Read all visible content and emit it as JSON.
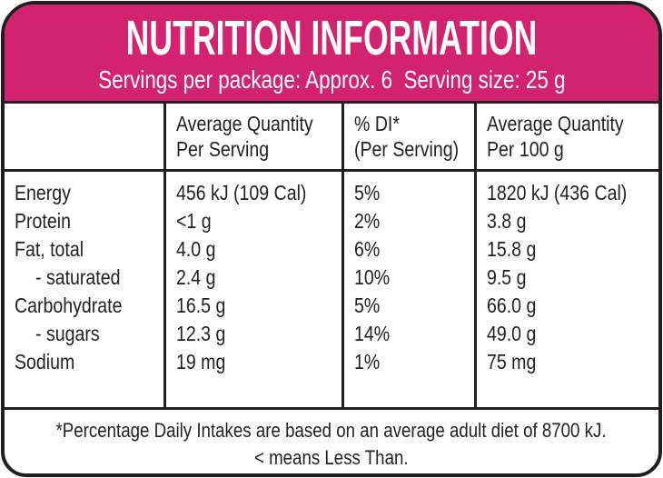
{
  "header": {
    "title": "NUTRITION INFORMATION",
    "servings_line": "Servings per package: Approx. 6  Serving size: 25 g"
  },
  "table": {
    "columns": [
      {
        "line1": "",
        "line2": ""
      },
      {
        "line1": "Average Quantity",
        "line2": "Per Serving"
      },
      {
        "line1": "% DI*",
        "line2": "(Per Serving)"
      },
      {
        "line1": "Average Quantity",
        "line2": "Per 100 g"
      }
    ],
    "rows": [
      {
        "label": "Energy",
        "per_serving": "456 kJ (109 Cal)",
        "di_per_serving": "5%",
        "per_100g": "1820 kJ (436 Cal)"
      },
      {
        "label": "Protein",
        "per_serving": "<1 g",
        "di_per_serving": "2%",
        "per_100g": "3.8 g"
      },
      {
        "label": "Fat, total",
        "per_serving": "4.0 g",
        "di_per_serving": "6%",
        "per_100g": "15.8 g"
      },
      {
        "label": "- saturated",
        "per_serving": "2.4 g",
        "di_per_serving": "10%",
        "per_100g": "9.5 g"
      },
      {
        "label": "Carbohydrate",
        "per_serving": "16.5 g",
        "di_per_serving": "5%",
        "per_100g": "66.0 g"
      },
      {
        "label": "- sugars",
        "per_serving": "12.3 g",
        "di_per_serving": "14%",
        "per_100g": "49.0 g"
      },
      {
        "label": "Sodium",
        "per_serving": "19 mg",
        "di_per_serving": "1%",
        "per_100g": "75 mg"
      }
    ]
  },
  "footer": {
    "line1": "*Percentage Daily Intakes are based on an average adult diet of 8700 kJ.",
    "line2": "< means Less Than."
  },
  "colors": {
    "pink": "#d3226f",
    "black": "#231f20",
    "white": "#ffffff"
  }
}
